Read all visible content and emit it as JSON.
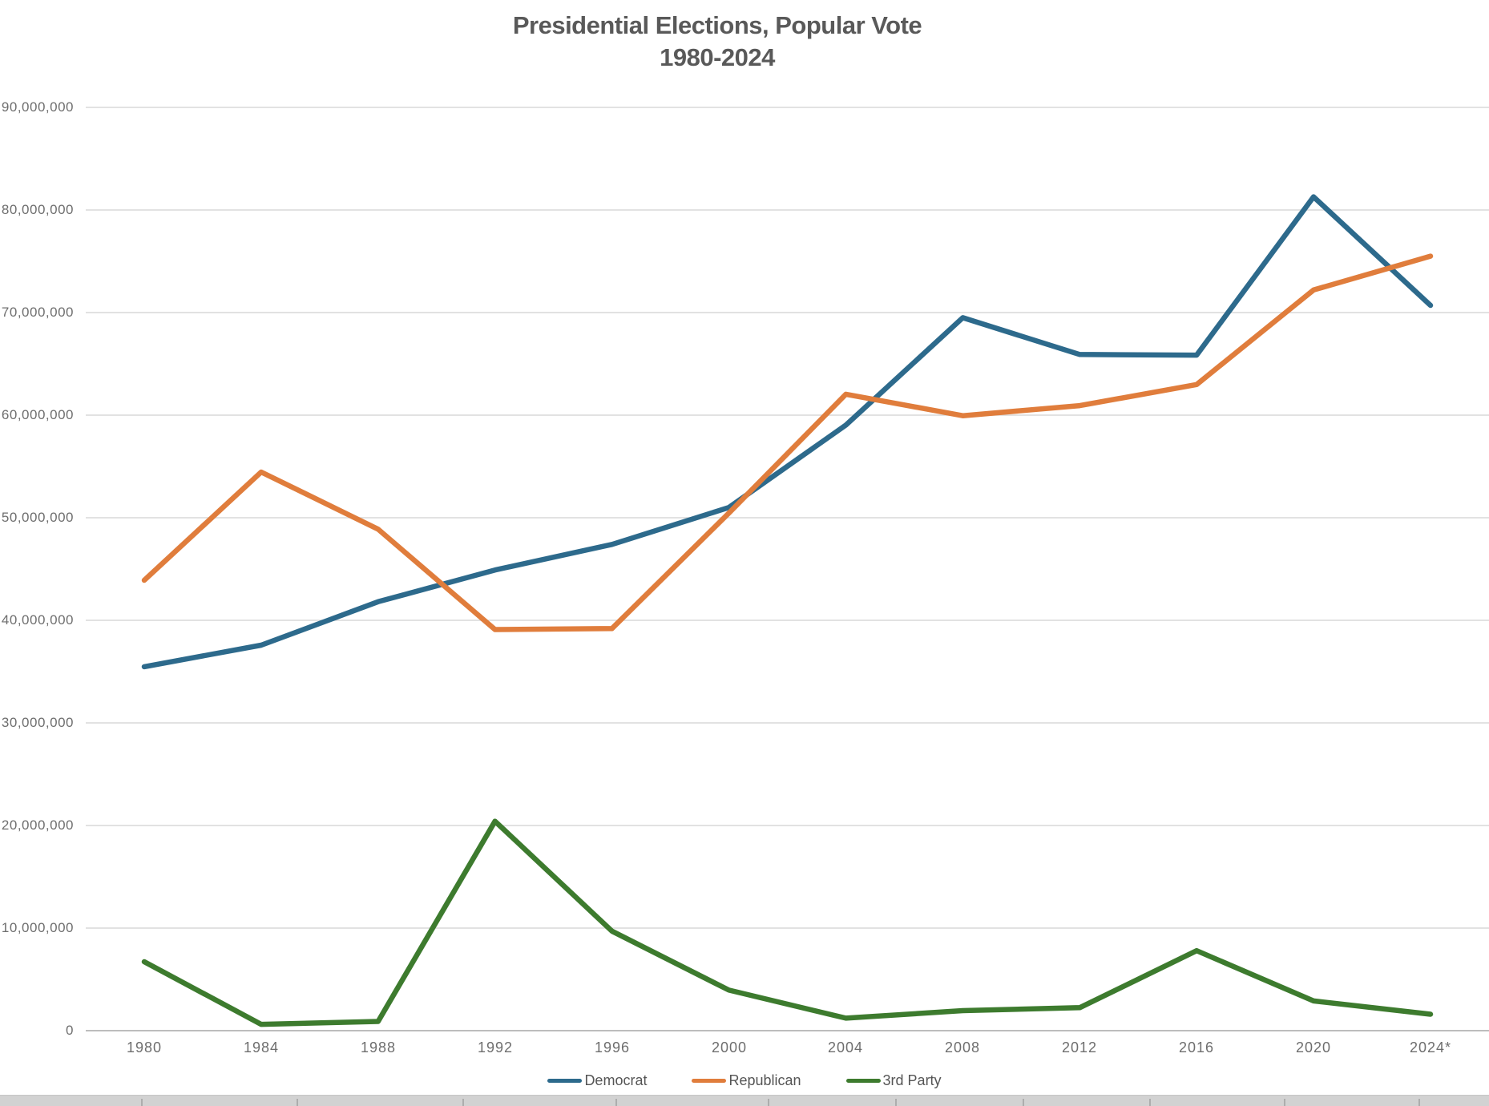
{
  "title": {
    "line1": "Presidential Elections, Popular Vote",
    "line2": "1980-2024"
  },
  "chart_data": {
    "type": "line",
    "categories": [
      "1980",
      "1984",
      "1988",
      "1992",
      "1996",
      "2000",
      "2004",
      "2008",
      "2012",
      "2016",
      "2020",
      "2024*"
    ],
    "series": [
      {
        "name": "Democrat",
        "color": "#2D6A8C",
        "values": [
          35480115,
          37577352,
          41809074,
          44909806,
          47401185,
          50999897,
          59028444,
          69498516,
          65915795,
          65853514,
          81283501,
          70700000
        ]
      },
      {
        "name": "Republican",
        "color": "#E07D3C",
        "values": [
          43903230,
          54455472,
          48886597,
          39104550,
          39197469,
          50456002,
          62040610,
          59948323,
          60933504,
          62984828,
          72200000,
          75500000
        ]
      },
      {
        "name": "3rd Party",
        "color": "#3D7B2E",
        "values": [
          6720000,
          620000,
          900000,
          20411000,
          9700000,
          3950000,
          1220000,
          1956000,
          2240000,
          7800000,
          2900000,
          1600000
        ]
      }
    ],
    "title": "Presidential Elections, Popular Vote 1980-2024",
    "xlabel": "",
    "ylabel": "",
    "ylim": [
      0,
      90000000
    ],
    "ytick_step": 10000000,
    "grid": "horizontal-only",
    "legend_position": "bottom"
  },
  "yaxis": {
    "labels_top_to_bottom": [
      "90,000,000",
      "80,000,000",
      "70,000,000",
      "60,000,000",
      "50,000,000",
      "40,000,000",
      "30,000,000",
      "20,000,000",
      "10,000,000",
      "0"
    ]
  },
  "colors": {
    "grid": "#D9D9D9",
    "axis_line": "#BDBDBD",
    "title_text": "#595959",
    "tick_text": "#6E6E6E",
    "legend_text": "#555555",
    "background": "#FFFFFF",
    "sheet_strip": "#D2D2D2"
  }
}
